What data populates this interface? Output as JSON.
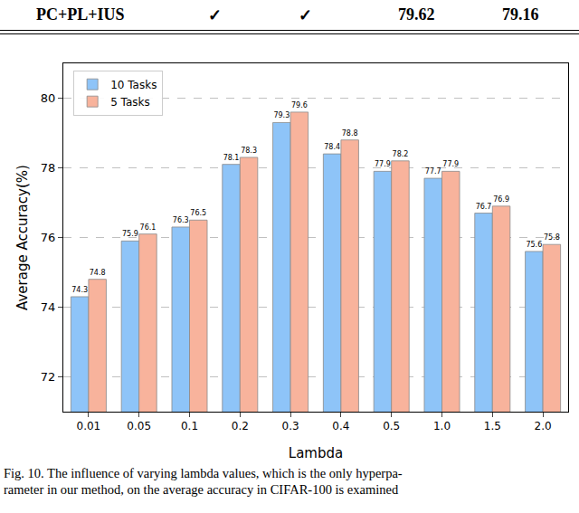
{
  "table": {
    "rows": [
      [
        "PC+PL+IUS",
        "✓",
        "✓",
        "79.62",
        "79.16"
      ]
    ]
  },
  "chart_data": {
    "type": "bar",
    "categories": [
      "0.01",
      "0.05",
      "0.1",
      "0.2",
      "0.3",
      "0.4",
      "0.5",
      "1.0",
      "1.5",
      "2.0"
    ],
    "series": [
      {
        "name": "10 Tasks",
        "color": "#8ec4f8",
        "values": [
          74.3,
          75.9,
          76.3,
          78.1,
          79.3,
          78.4,
          77.9,
          77.7,
          76.7,
          75.6
        ]
      },
      {
        "name": "5 Tasks",
        "color": "#f8b39c",
        "values": [
          74.8,
          76.1,
          76.5,
          78.3,
          79.6,
          78.8,
          78.2,
          77.9,
          76.9,
          75.8
        ]
      }
    ],
    "x_label": "Lambda",
    "y_label": "Average Accuracy(%)",
    "ylim": [
      71,
      81
    ],
    "yticks": [
      72,
      74,
      76,
      78,
      80
    ],
    "grid": true,
    "legend": "upper left",
    "data_labels": true
  },
  "caption": {
    "lines": [
      "Fig. 10.  The influence of varying lambda values, which is the only hyperpa-",
      "rameter in our method, on the average accuracy in CIFAR-100 is examined"
    ]
  }
}
